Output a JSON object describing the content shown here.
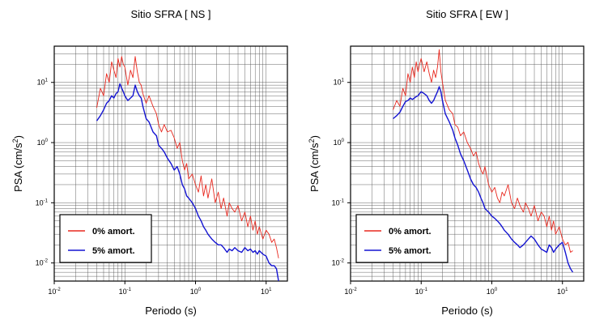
{
  "chart_data": [
    {
      "type": "line",
      "title": "Sitio SFRA [ NS ]",
      "xlabel": "Periodo (s)",
      "ylabel_main": "PSA (cm/s",
      "ylabel_sup": "2",
      "ylabel_close": ")",
      "x_scale": "log",
      "y_scale": "log",
      "xlim": [
        0.01,
        20
      ],
      "ylim": [
        0.005,
        40
      ],
      "grid": true,
      "legend_position": "bottom-left",
      "x_ticks": [
        {
          "base": "10",
          "exp": "-2",
          "value": 0.01
        },
        {
          "base": "10",
          "exp": "-1",
          "value": 0.1
        },
        {
          "base": "10",
          "exp": "0",
          "value": 1
        },
        {
          "base": "10",
          "exp": "1",
          "value": 10
        }
      ],
      "y_ticks": [
        {
          "base": "10",
          "exp": "-2",
          "value": 0.01
        },
        {
          "base": "10",
          "exp": "-1",
          "value": 0.1
        },
        {
          "base": "10",
          "exp": "0",
          "value": 1
        },
        {
          "base": "10",
          "exp": "1",
          "value": 10
        }
      ],
      "series": [
        {
          "name": "0% amort.",
          "color": "#e8281e",
          "x": [
            0.04,
            0.045,
            0.05,
            0.055,
            0.06,
            0.065,
            0.07,
            0.075,
            0.08,
            0.085,
            0.09,
            0.095,
            0.1,
            0.11,
            0.12,
            0.13,
            0.14,
            0.15,
            0.16,
            0.17,
            0.18,
            0.2,
            0.22,
            0.25,
            0.28,
            0.3,
            0.33,
            0.36,
            0.4,
            0.45,
            0.5,
            0.55,
            0.6,
            0.65,
            0.7,
            0.75,
            0.8,
            0.9,
            1.0,
            1.1,
            1.2,
            1.3,
            1.4,
            1.5,
            1.7,
            1.9,
            2.1,
            2.3,
            2.5,
            2.8,
            3.0,
            3.3,
            3.6,
            4.0,
            4.5,
            5.0,
            5.5,
            6.0,
            6.5,
            7.0,
            7.5,
            8.0,
            9.0,
            10.0,
            11.0,
            12.0,
            13.0,
            14.0,
            15.0
          ],
          "y": [
            3.8,
            8.0,
            6.0,
            14.0,
            10.0,
            22.0,
            16.0,
            12.0,
            25.0,
            18.0,
            27.0,
            20.0,
            18.0,
            9.0,
            16.0,
            12.0,
            27.0,
            15.0,
            10.0,
            9.0,
            6.5,
            4.5,
            6.0,
            4.0,
            3.0,
            2.0,
            1.5,
            2.0,
            1.5,
            1.6,
            1.2,
            0.8,
            1.0,
            0.5,
            0.35,
            0.45,
            0.25,
            0.3,
            0.2,
            0.15,
            0.28,
            0.13,
            0.2,
            0.12,
            0.25,
            0.1,
            0.15,
            0.08,
            0.12,
            0.06,
            0.1,
            0.08,
            0.07,
            0.09,
            0.05,
            0.07,
            0.04,
            0.06,
            0.035,
            0.05,
            0.03,
            0.04,
            0.025,
            0.035,
            0.03,
            0.022,
            0.025,
            0.018,
            0.012
          ]
        },
        {
          "name": "5% amort.",
          "color": "#1414d2",
          "x": [
            0.04,
            0.045,
            0.05,
            0.055,
            0.06,
            0.065,
            0.07,
            0.075,
            0.08,
            0.085,
            0.09,
            0.095,
            0.1,
            0.11,
            0.12,
            0.13,
            0.14,
            0.15,
            0.16,
            0.17,
            0.18,
            0.2,
            0.22,
            0.25,
            0.28,
            0.3,
            0.33,
            0.36,
            0.4,
            0.45,
            0.5,
            0.55,
            0.6,
            0.65,
            0.7,
            0.75,
            0.8,
            0.9,
            1.0,
            1.1,
            1.2,
            1.3,
            1.4,
            1.5,
            1.7,
            1.9,
            2.1,
            2.3,
            2.5,
            2.8,
            3.0,
            3.3,
            3.6,
            4.0,
            4.5,
            5.0,
            5.5,
            6.0,
            6.5,
            7.0,
            7.5,
            8.0,
            9.0,
            10.0,
            11.0,
            12.0,
            13.0,
            14.0,
            15.0
          ],
          "y": [
            2.3,
            2.8,
            3.5,
            4.5,
            5.0,
            6.0,
            5.5,
            6.5,
            7.0,
            9.5,
            8.0,
            7.0,
            6.0,
            5.0,
            5.5,
            6.0,
            9.0,
            7.0,
            6.0,
            5.5,
            4.0,
            2.5,
            2.2,
            1.5,
            1.3,
            0.9,
            0.8,
            0.7,
            0.55,
            0.45,
            0.35,
            0.4,
            0.3,
            0.2,
            0.17,
            0.13,
            0.12,
            0.1,
            0.08,
            0.06,
            0.05,
            0.04,
            0.035,
            0.03,
            0.025,
            0.022,
            0.02,
            0.02,
            0.018,
            0.015,
            0.017,
            0.016,
            0.018,
            0.016,
            0.015,
            0.018,
            0.016,
            0.017,
            0.015,
            0.016,
            0.014,
            0.016,
            0.014,
            0.013,
            0.01,
            0.009,
            0.009,
            0.008,
            0.005
          ]
        }
      ]
    },
    {
      "type": "line",
      "title": "Sitio SFRA [ EW ]",
      "xlabel": "Periodo (s)",
      "ylabel_main": "PSA (cm/s",
      "ylabel_sup": "2",
      "ylabel_close": ")",
      "x_scale": "log",
      "y_scale": "log",
      "xlim": [
        0.01,
        20
      ],
      "ylim": [
        0.005,
        40
      ],
      "grid": true,
      "legend_position": "bottom-left",
      "x_ticks": [
        {
          "base": "10",
          "exp": "-2",
          "value": 0.01
        },
        {
          "base": "10",
          "exp": "-1",
          "value": 0.1
        },
        {
          "base": "10",
          "exp": "0",
          "value": 1
        },
        {
          "base": "10",
          "exp": "1",
          "value": 10
        }
      ],
      "y_ticks": [
        {
          "base": "10",
          "exp": "-2",
          "value": 0.01
        },
        {
          "base": "10",
          "exp": "-1",
          "value": 0.1
        },
        {
          "base": "10",
          "exp": "0",
          "value": 1
        },
        {
          "base": "10",
          "exp": "1",
          "value": 10
        }
      ],
      "series": [
        {
          "name": "0% amort.",
          "color": "#e8281e",
          "x": [
            0.04,
            0.045,
            0.05,
            0.055,
            0.06,
            0.065,
            0.07,
            0.075,
            0.08,
            0.085,
            0.09,
            0.095,
            0.1,
            0.11,
            0.12,
            0.13,
            0.14,
            0.15,
            0.16,
            0.17,
            0.18,
            0.19,
            0.2,
            0.22,
            0.25,
            0.28,
            0.3,
            0.33,
            0.36,
            0.4,
            0.45,
            0.5,
            0.55,
            0.6,
            0.65,
            0.7,
            0.75,
            0.8,
            0.9,
            1.0,
            1.1,
            1.2,
            1.3,
            1.4,
            1.5,
            1.7,
            1.9,
            2.1,
            2.3,
            2.5,
            2.8,
            3.0,
            3.3,
            3.6,
            4.0,
            4.5,
            5.0,
            5.5,
            6.0,
            6.5,
            7.0,
            7.5,
            8.0,
            9.0,
            10.0,
            11.0,
            12.0,
            13.0,
            14.0
          ],
          "y": [
            3.5,
            5.0,
            4.0,
            8.0,
            6.0,
            14.0,
            10.0,
            18.0,
            12.0,
            22.0,
            15.0,
            20.0,
            25.0,
            15.0,
            22.0,
            14.0,
            10.0,
            16.0,
            12.0,
            18.0,
            35.0,
            15.0,
            10.0,
            5.0,
            3.5,
            3.0,
            2.0,
            1.8,
            1.3,
            1.5,
            1.0,
            0.8,
            0.6,
            0.7,
            0.45,
            0.35,
            0.3,
            0.4,
            0.2,
            0.15,
            0.18,
            0.12,
            0.1,
            0.15,
            0.13,
            0.2,
            0.1,
            0.08,
            0.12,
            0.09,
            0.07,
            0.1,
            0.08,
            0.06,
            0.09,
            0.05,
            0.07,
            0.06,
            0.04,
            0.06,
            0.035,
            0.05,
            0.03,
            0.04,
            0.025,
            0.02,
            0.022,
            0.015,
            0.016
          ]
        },
        {
          "name": "5% amort.",
          "color": "#1414d2",
          "x": [
            0.04,
            0.045,
            0.05,
            0.055,
            0.06,
            0.065,
            0.07,
            0.075,
            0.08,
            0.085,
            0.09,
            0.095,
            0.1,
            0.11,
            0.12,
            0.13,
            0.14,
            0.15,
            0.16,
            0.17,
            0.18,
            0.19,
            0.2,
            0.22,
            0.25,
            0.28,
            0.3,
            0.33,
            0.36,
            0.4,
            0.45,
            0.5,
            0.55,
            0.6,
            0.65,
            0.7,
            0.75,
            0.8,
            0.9,
            1.0,
            1.1,
            1.2,
            1.3,
            1.4,
            1.5,
            1.7,
            1.9,
            2.1,
            2.3,
            2.5,
            2.8,
            3.0,
            3.3,
            3.6,
            4.0,
            4.5,
            5.0,
            5.5,
            6.0,
            6.5,
            7.0,
            7.5,
            8.0,
            9.0,
            10.0,
            11.0,
            12.0,
            13.0,
            14.0
          ],
          "y": [
            2.5,
            2.8,
            3.2,
            4.0,
            4.8,
            5.0,
            5.5,
            5.2,
            5.5,
            5.8,
            6.0,
            6.5,
            7.0,
            6.5,
            6.0,
            5.0,
            4.5,
            5.0,
            6.0,
            7.0,
            8.5,
            7.0,
            5.0,
            3.0,
            2.2,
            1.6,
            1.2,
            0.9,
            0.65,
            0.5,
            0.35,
            0.25,
            0.2,
            0.18,
            0.15,
            0.12,
            0.1,
            0.08,
            0.07,
            0.06,
            0.055,
            0.05,
            0.045,
            0.04,
            0.035,
            0.03,
            0.025,
            0.022,
            0.02,
            0.018,
            0.02,
            0.022,
            0.025,
            0.028,
            0.025,
            0.02,
            0.017,
            0.016,
            0.015,
            0.02,
            0.018,
            0.015,
            0.017,
            0.02,
            0.022,
            0.015,
            0.01,
            0.008,
            0.007
          ]
        }
      ]
    }
  ]
}
